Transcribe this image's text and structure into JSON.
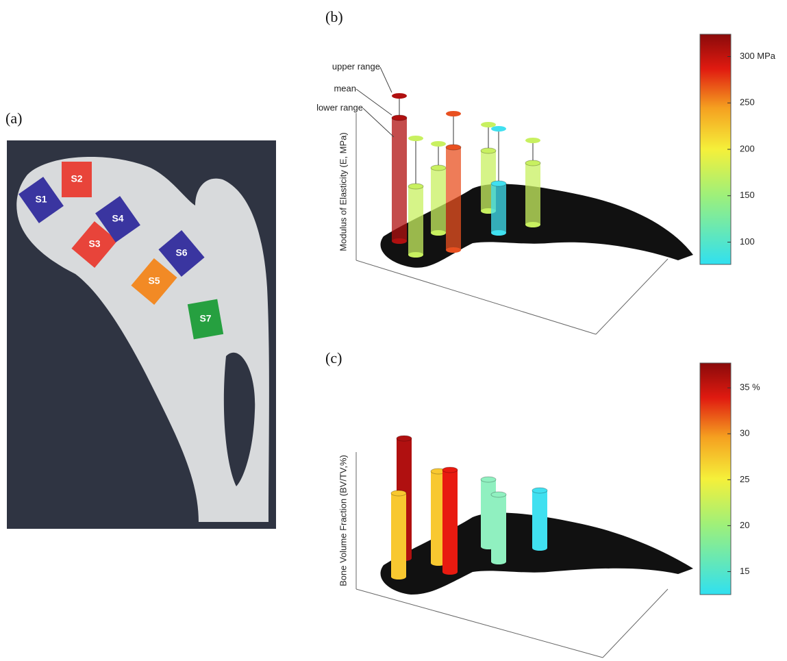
{
  "panels": [
    {
      "label": "(a)",
      "regions": [
        "S1",
        "S2",
        "S3",
        "S4",
        "S5",
        "S6",
        "S7"
      ]
    },
    {
      "label": "(b)",
      "y_label": "Modulus of Elasticity (E, MPa)",
      "annotations": [
        "upper range",
        "mean",
        "lower range"
      ],
      "colorbar": {
        "lim": [
          76,
          324
        ],
        "ticks": [
          100,
          150,
          200,
          250,
          {
            "value": 300,
            "label": "300 MPa"
          }
        ]
      }
    },
    {
      "label": "(c)",
      "y_label": "Bone Volume Fraction (BV/TV,%)",
      "colorbar": {
        "lim": [
          12.5,
          37.7
        ],
        "ticks": [
          15,
          20,
          25,
          30,
          {
            "value": 35,
            "label": "35 %"
          }
        ]
      }
    }
  ]
}
